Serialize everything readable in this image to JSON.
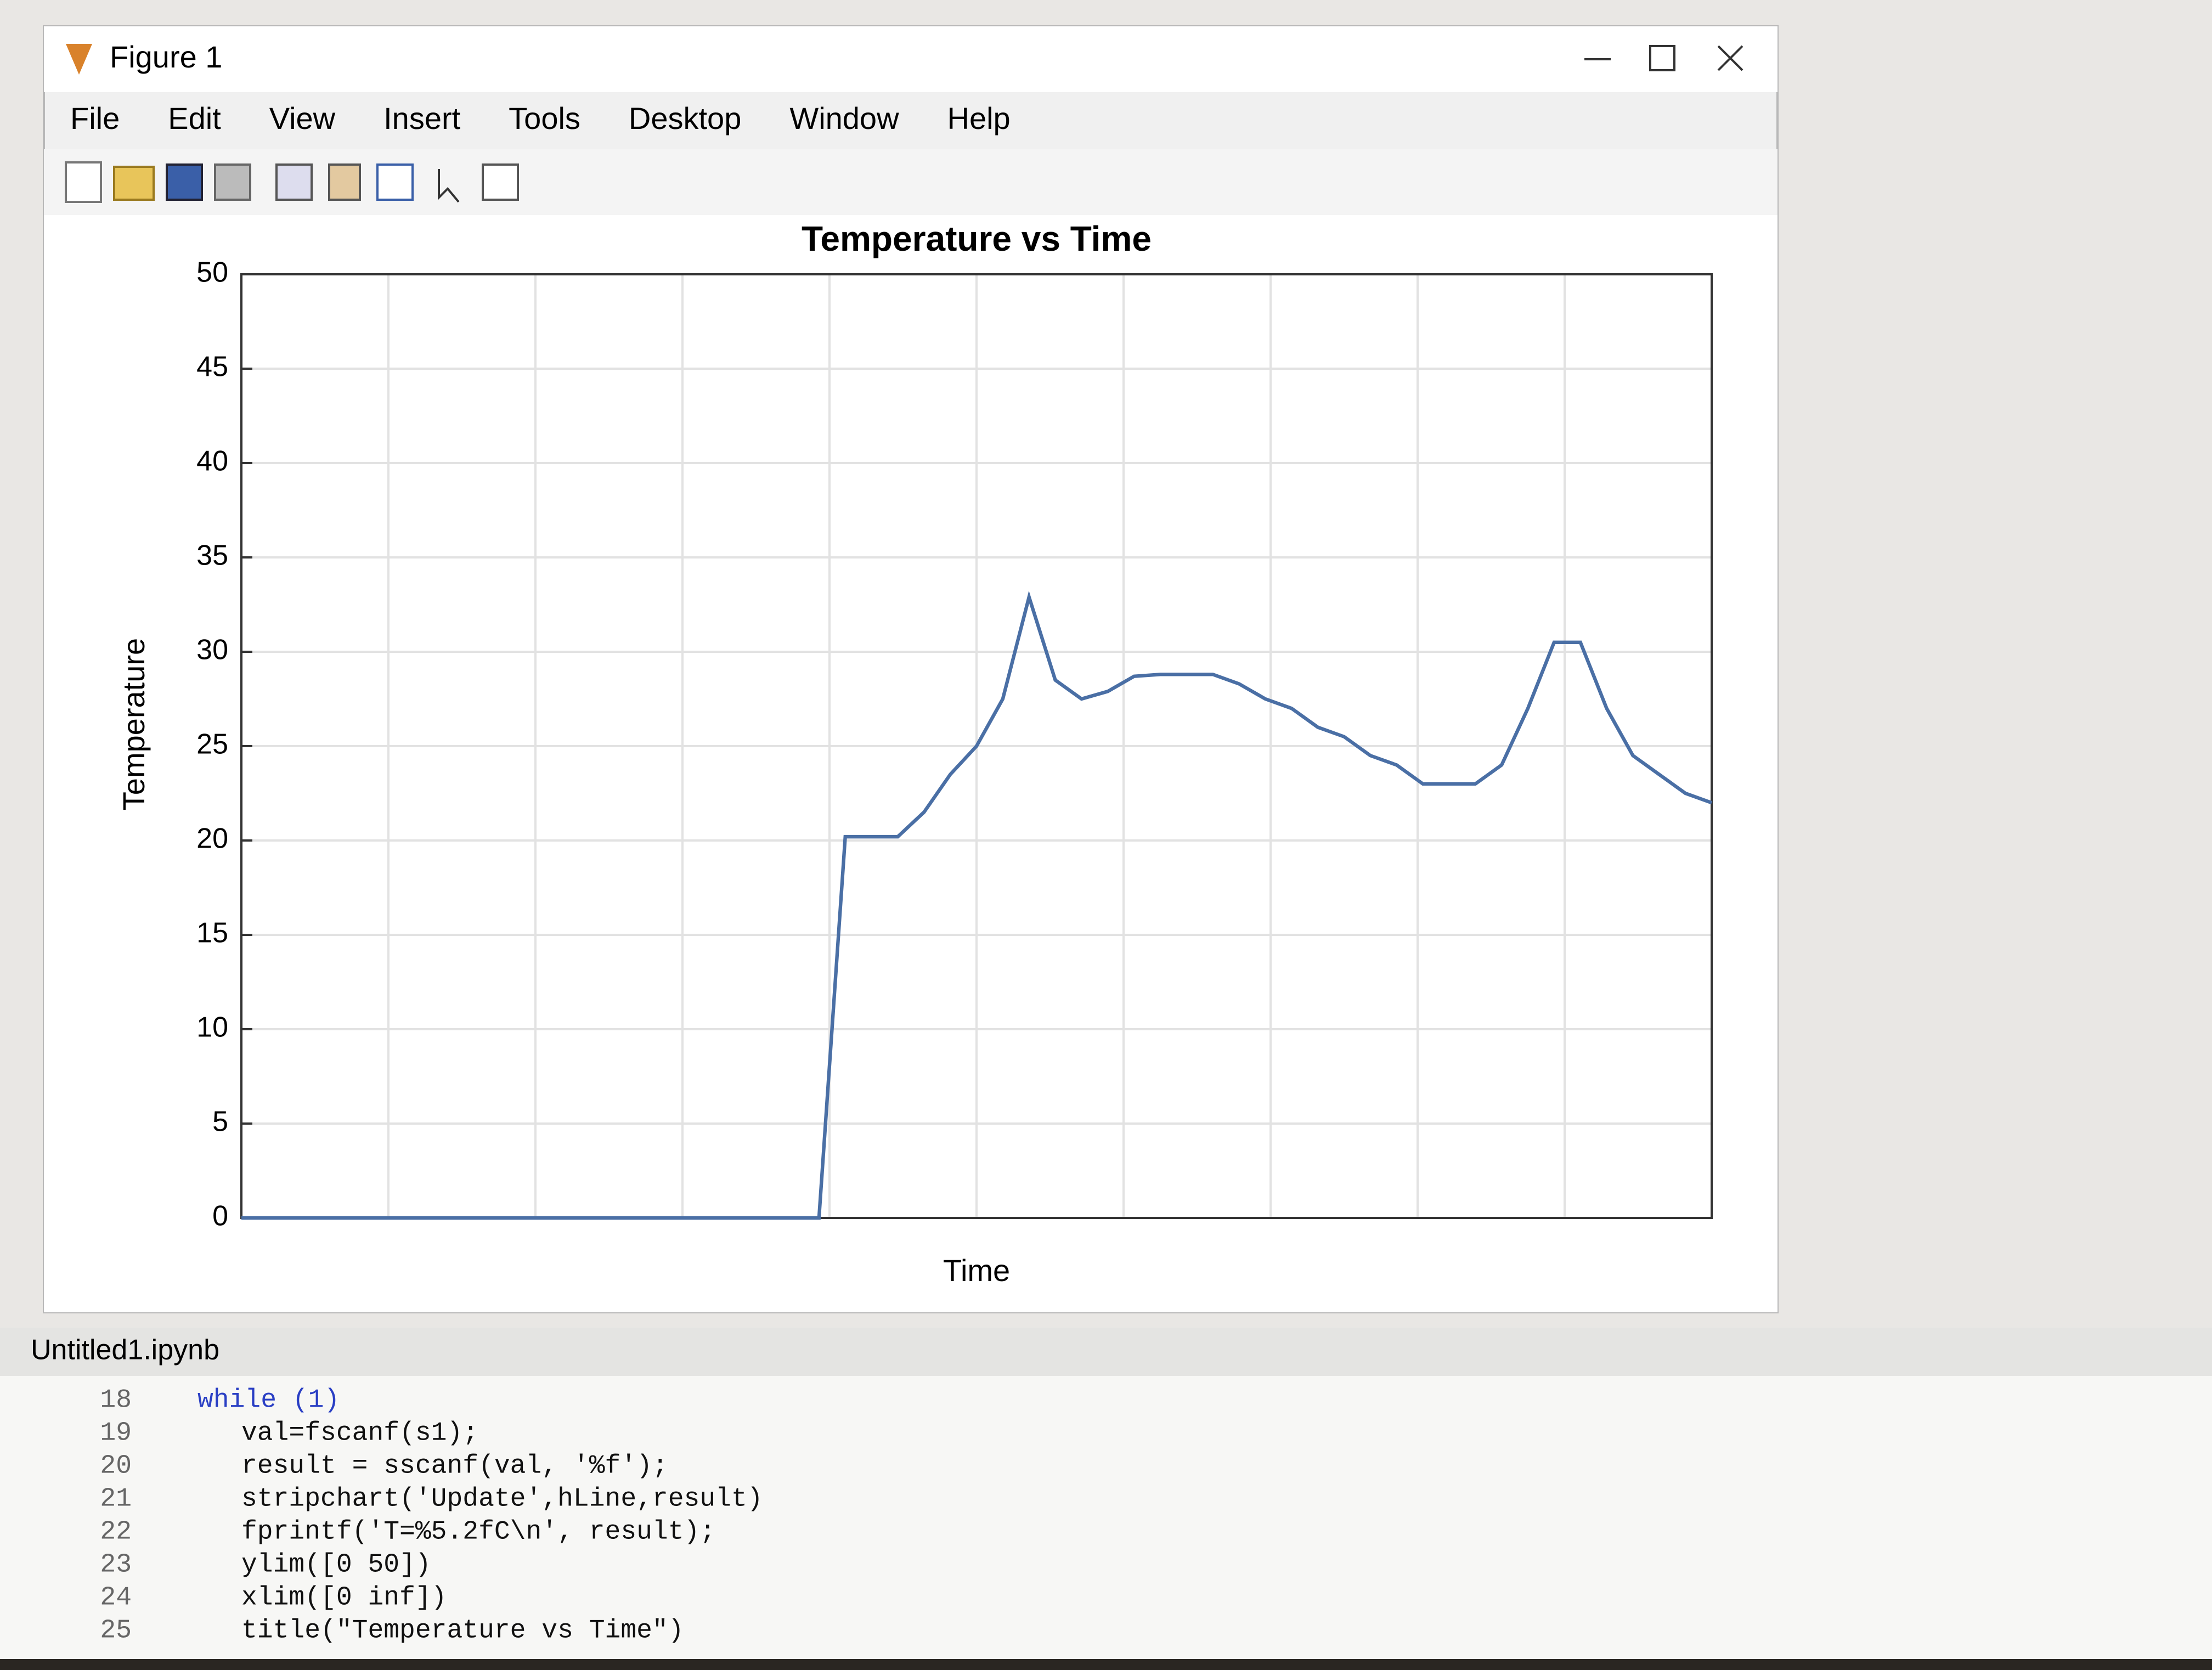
{
  "window": {
    "title": "Figure 1",
    "menu": [
      "File",
      "Edit",
      "View",
      "Insert",
      "Tools",
      "Desktop",
      "Window",
      "Help"
    ]
  },
  "chart_data": {
    "type": "line",
    "title": "Temperature vs Time",
    "xlabel": "Time",
    "ylabel": "Temperature",
    "values": [
      0,
      0,
      0,
      0,
      0,
      0,
      0,
      0,
      0,
      0,
      0,
      0,
      0,
      0,
      0,
      0,
      0,
      0,
      0,
      0,
      0,
      0,
      0,
      20.2,
      20.2,
      20.2,
      21.5,
      23.5,
      25,
      27.5,
      32.9,
      28.5,
      27.5,
      27.9,
      28.7,
      28.8,
      28.8,
      28.8,
      28.3,
      27.5,
      27,
      26,
      25.5,
      24.5,
      24,
      23,
      23,
      23,
      24,
      27,
      30.5,
      30.5,
      27,
      24.5,
      23.5,
      22.5,
      22
    ],
    "color": "#4a6fa5",
    "ylim": [
      0,
      50
    ],
    "yticks": [
      0,
      5,
      10,
      15,
      20,
      25,
      30,
      35,
      40,
      45,
      50
    ],
    "grid": true
  },
  "editor": {
    "file": "Untitled1.ipynb",
    "lines": [
      {
        "number": 18,
        "code": "while (1)"
      },
      {
        "number": 19,
        "code": "val=fscanf(s1);"
      },
      {
        "number": 20,
        "code": "result = sscanf(val, '%f');"
      },
      {
        "number": 21,
        "code": "stripchart('Update',hLine,result)"
      },
      {
        "number": 22,
        "code": "fprintf('T=%5.2fC\\n', result);"
      },
      {
        "number": 23,
        "code": "ylim([0 50])"
      },
      {
        "number": 24,
        "code": "xlim([0 inf])"
      },
      {
        "number": 25,
        "code": "title(\"Temperature vs Time\")"
      }
    ]
  }
}
